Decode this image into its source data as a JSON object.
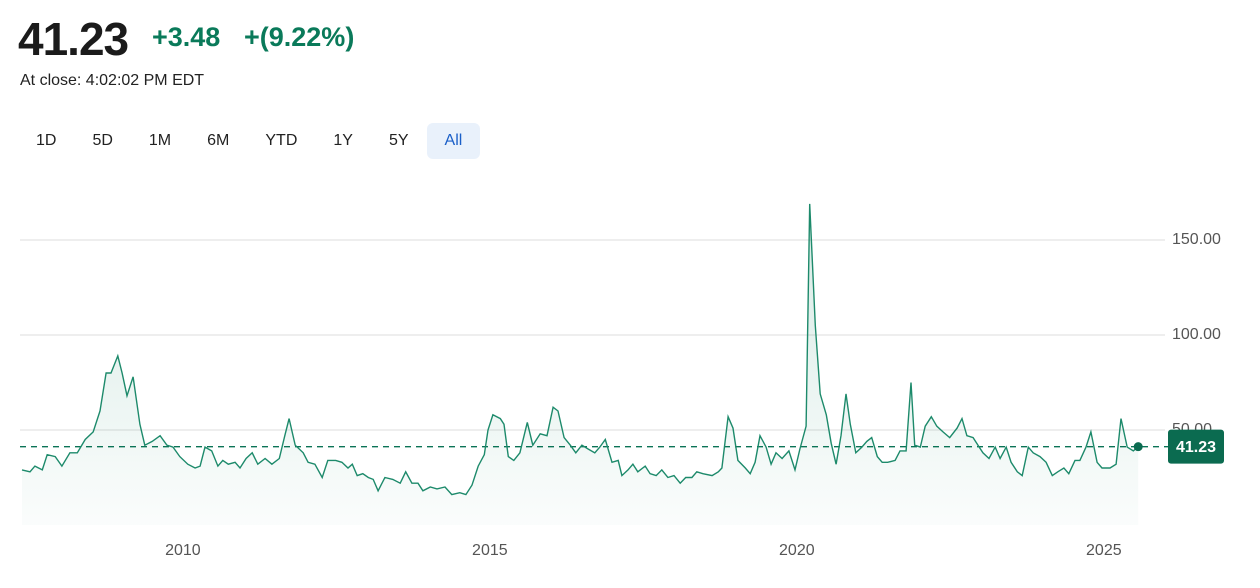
{
  "header": {
    "price": "41.23",
    "change": "+3.48",
    "change_percent": "+(9.22%)",
    "close_time": "At close: 4:02:02 PM EDT"
  },
  "range_buttons": [
    "1D",
    "5D",
    "1M",
    "6M",
    "YTD",
    "1Y",
    "5Y",
    "All"
  ],
  "selected_range": "All",
  "chart_data": {
    "type": "line",
    "color": "#1d8a6b",
    "xlim": [
      2007.38,
      2025.98
    ],
    "xticks": [
      2010,
      2015,
      2020,
      2025
    ],
    "ylim": [
      0,
      180
    ],
    "yticks": [
      {
        "value": 50,
        "label": "50.00"
      },
      {
        "value": 100,
        "label": "100.00"
      },
      {
        "value": 150,
        "label": "150.00"
      }
    ],
    "grid": true,
    "reference_line": 41.23,
    "x": [
      2007.38,
      2007.51,
      2007.59,
      2007.71,
      2007.79,
      2007.92,
      2008.03,
      2008.16,
      2008.28,
      2008.41,
      2008.54,
      2008.65,
      2008.75,
      2008.83,
      2008.94,
      2009.01,
      2009.09,
      2009.19,
      2009.3,
      2009.38,
      2009.5,
      2009.63,
      2009.74,
      2009.84,
      2009.95,
      2010.08,
      2010.2,
      2010.28,
      2010.36,
      2010.47,
      2010.57,
      2010.65,
      2010.74,
      2010.85,
      2010.93,
      2011.03,
      2011.13,
      2011.22,
      2011.34,
      2011.45,
      2011.57,
      2011.66,
      2011.73,
      2011.83,
      2011.96,
      2012.04,
      2012.15,
      2012.27,
      2012.36,
      2012.49,
      2012.59,
      2012.69,
      2012.76,
      2012.84,
      2012.93,
      2013.02,
      2013.1,
      2013.18,
      2013.29,
      2013.42,
      2013.54,
      2013.63,
      2013.73,
      2013.83,
      2013.91,
      2014.03,
      2014.14,
      2014.27,
      2014.38,
      2014.51,
      2014.61,
      2014.71,
      2014.81,
      2014.91,
      2014.97,
      2015.05,
      2015.17,
      2015.23,
      2015.3,
      2015.39,
      2015.49,
      2015.61,
      2015.7,
      2015.82,
      2015.93,
      2016.03,
      2016.11,
      2016.21,
      2016.31,
      2016.4,
      2016.5,
      2016.6,
      2016.71,
      2016.79,
      2016.88,
      2016.99,
      2017.09,
      2017.15,
      2017.25,
      2017.33,
      2017.41,
      2017.53,
      2017.61,
      2017.71,
      2017.8,
      2017.9,
      2018.0,
      2018.1,
      2018.19,
      2018.29,
      2018.37,
      2018.47,
      2018.62,
      2018.72,
      2018.78,
      2018.88,
      2018.96,
      2019.04,
      2019.16,
      2019.24,
      2019.32,
      2019.4,
      2019.5,
      2019.58,
      2019.66,
      2019.76,
      2019.87,
      2019.97,
      2020.05,
      2020.15,
      2020.21,
      2020.3,
      2020.38,
      2020.48,
      2020.56,
      2020.64,
      2020.72,
      2020.8,
      2020.87,
      2020.96,
      2021.06,
      2021.14,
      2021.22,
      2021.31,
      2021.39,
      2021.48,
      2021.6,
      2021.68,
      2021.78,
      2021.86,
      2021.92,
      2022.01,
      2022.09,
      2022.19,
      2022.28,
      2022.38,
      2022.49,
      2022.61,
      2022.69,
      2022.77,
      2022.87,
      2022.95,
      2023.03,
      2023.13,
      2023.23,
      2023.31,
      2023.41,
      2023.49,
      2023.59,
      2023.67,
      2023.77,
      2023.85,
      2023.96,
      2024.06,
      2024.16,
      2024.25,
      2024.35,
      2024.43,
      2024.53,
      2024.61,
      2024.71,
      2024.79,
      2024.89,
      2024.97,
      2025.1,
      2025.2,
      2025.28,
      2025.38,
      2025.48,
      2025.56
    ],
    "values": [
      29,
      28,
      31,
      29,
      37,
      36,
      31,
      38,
      38,
      45,
      49,
      60,
      80,
      80,
      89,
      80,
      68,
      78,
      53,
      42,
      44,
      47,
      42,
      41,
      36,
      32,
      30,
      31,
      41,
      39,
      31,
      34,
      32,
      33,
      30,
      35,
      38,
      32,
      35,
      32,
      35,
      47,
      56,
      42,
      38,
      33,
      32,
      25,
      34,
      34,
      33,
      30,
      32,
      26,
      27,
      25,
      24,
      18,
      25,
      24,
      22,
      28,
      22,
      22,
      18,
      20,
      19,
      20,
      16,
      17,
      16,
      21,
      31,
      37,
      50,
      58,
      56,
      53,
      36,
      34,
      38,
      54,
      42,
      48,
      47,
      62,
      60,
      46,
      42,
      38,
      42,
      40,
      38,
      41,
      45,
      33,
      34,
      26,
      29,
      32,
      28,
      31,
      27,
      26,
      29,
      25,
      26,
      22,
      25,
      25,
      28,
      27,
      26,
      28,
      30,
      57,
      51,
      34,
      30,
      27,
      33,
      47,
      41,
      32,
      38,
      35,
      39,
      29,
      40,
      52,
      169,
      105,
      69,
      58,
      43,
      32,
      47,
      69,
      53,
      38,
      41,
      44,
      46,
      36,
      33,
      33,
      34,
      39,
      39,
      75,
      42,
      41,
      52,
      57,
      52,
      49,
      46,
      51,
      56,
      47,
      46,
      42,
      38,
      35,
      41,
      35,
      41,
      33,
      28,
      26,
      41,
      38,
      36,
      33,
      26,
      28,
      30,
      27,
      34,
      34,
      41,
      49,
      33,
      30,
      30,
      32,
      56,
      41,
      39,
      41.23
    ]
  }
}
